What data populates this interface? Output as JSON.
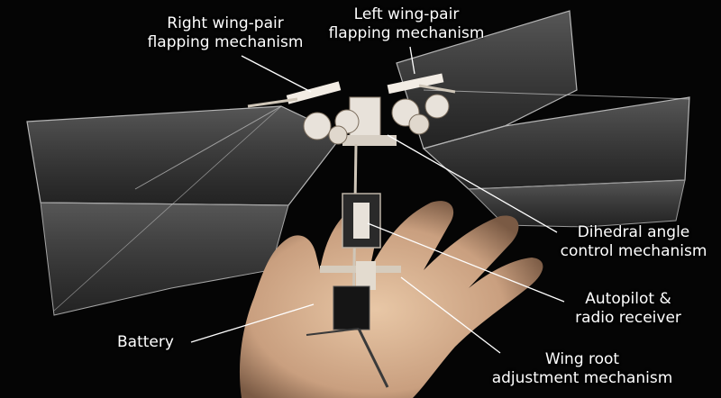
{
  "labels": {
    "right_wing": "Right wing-pair\nflapping mechanism",
    "left_wing": "Left wing-pair\nflapping mechanism",
    "dihedral": "Dihedral angle\ncontrol mechanism",
    "autopilot": "Autopilot &\nradio receiver",
    "battery": "Battery",
    "wing_root": "Wing root\nadjustment mechanism"
  },
  "colors": {
    "background": "#050505",
    "label_text": "#ffffff",
    "leader_line": "#ffffff",
    "hand": "#d9b493",
    "wing_film": "#8c8c8c",
    "mechanism": "#e8e2da"
  }
}
